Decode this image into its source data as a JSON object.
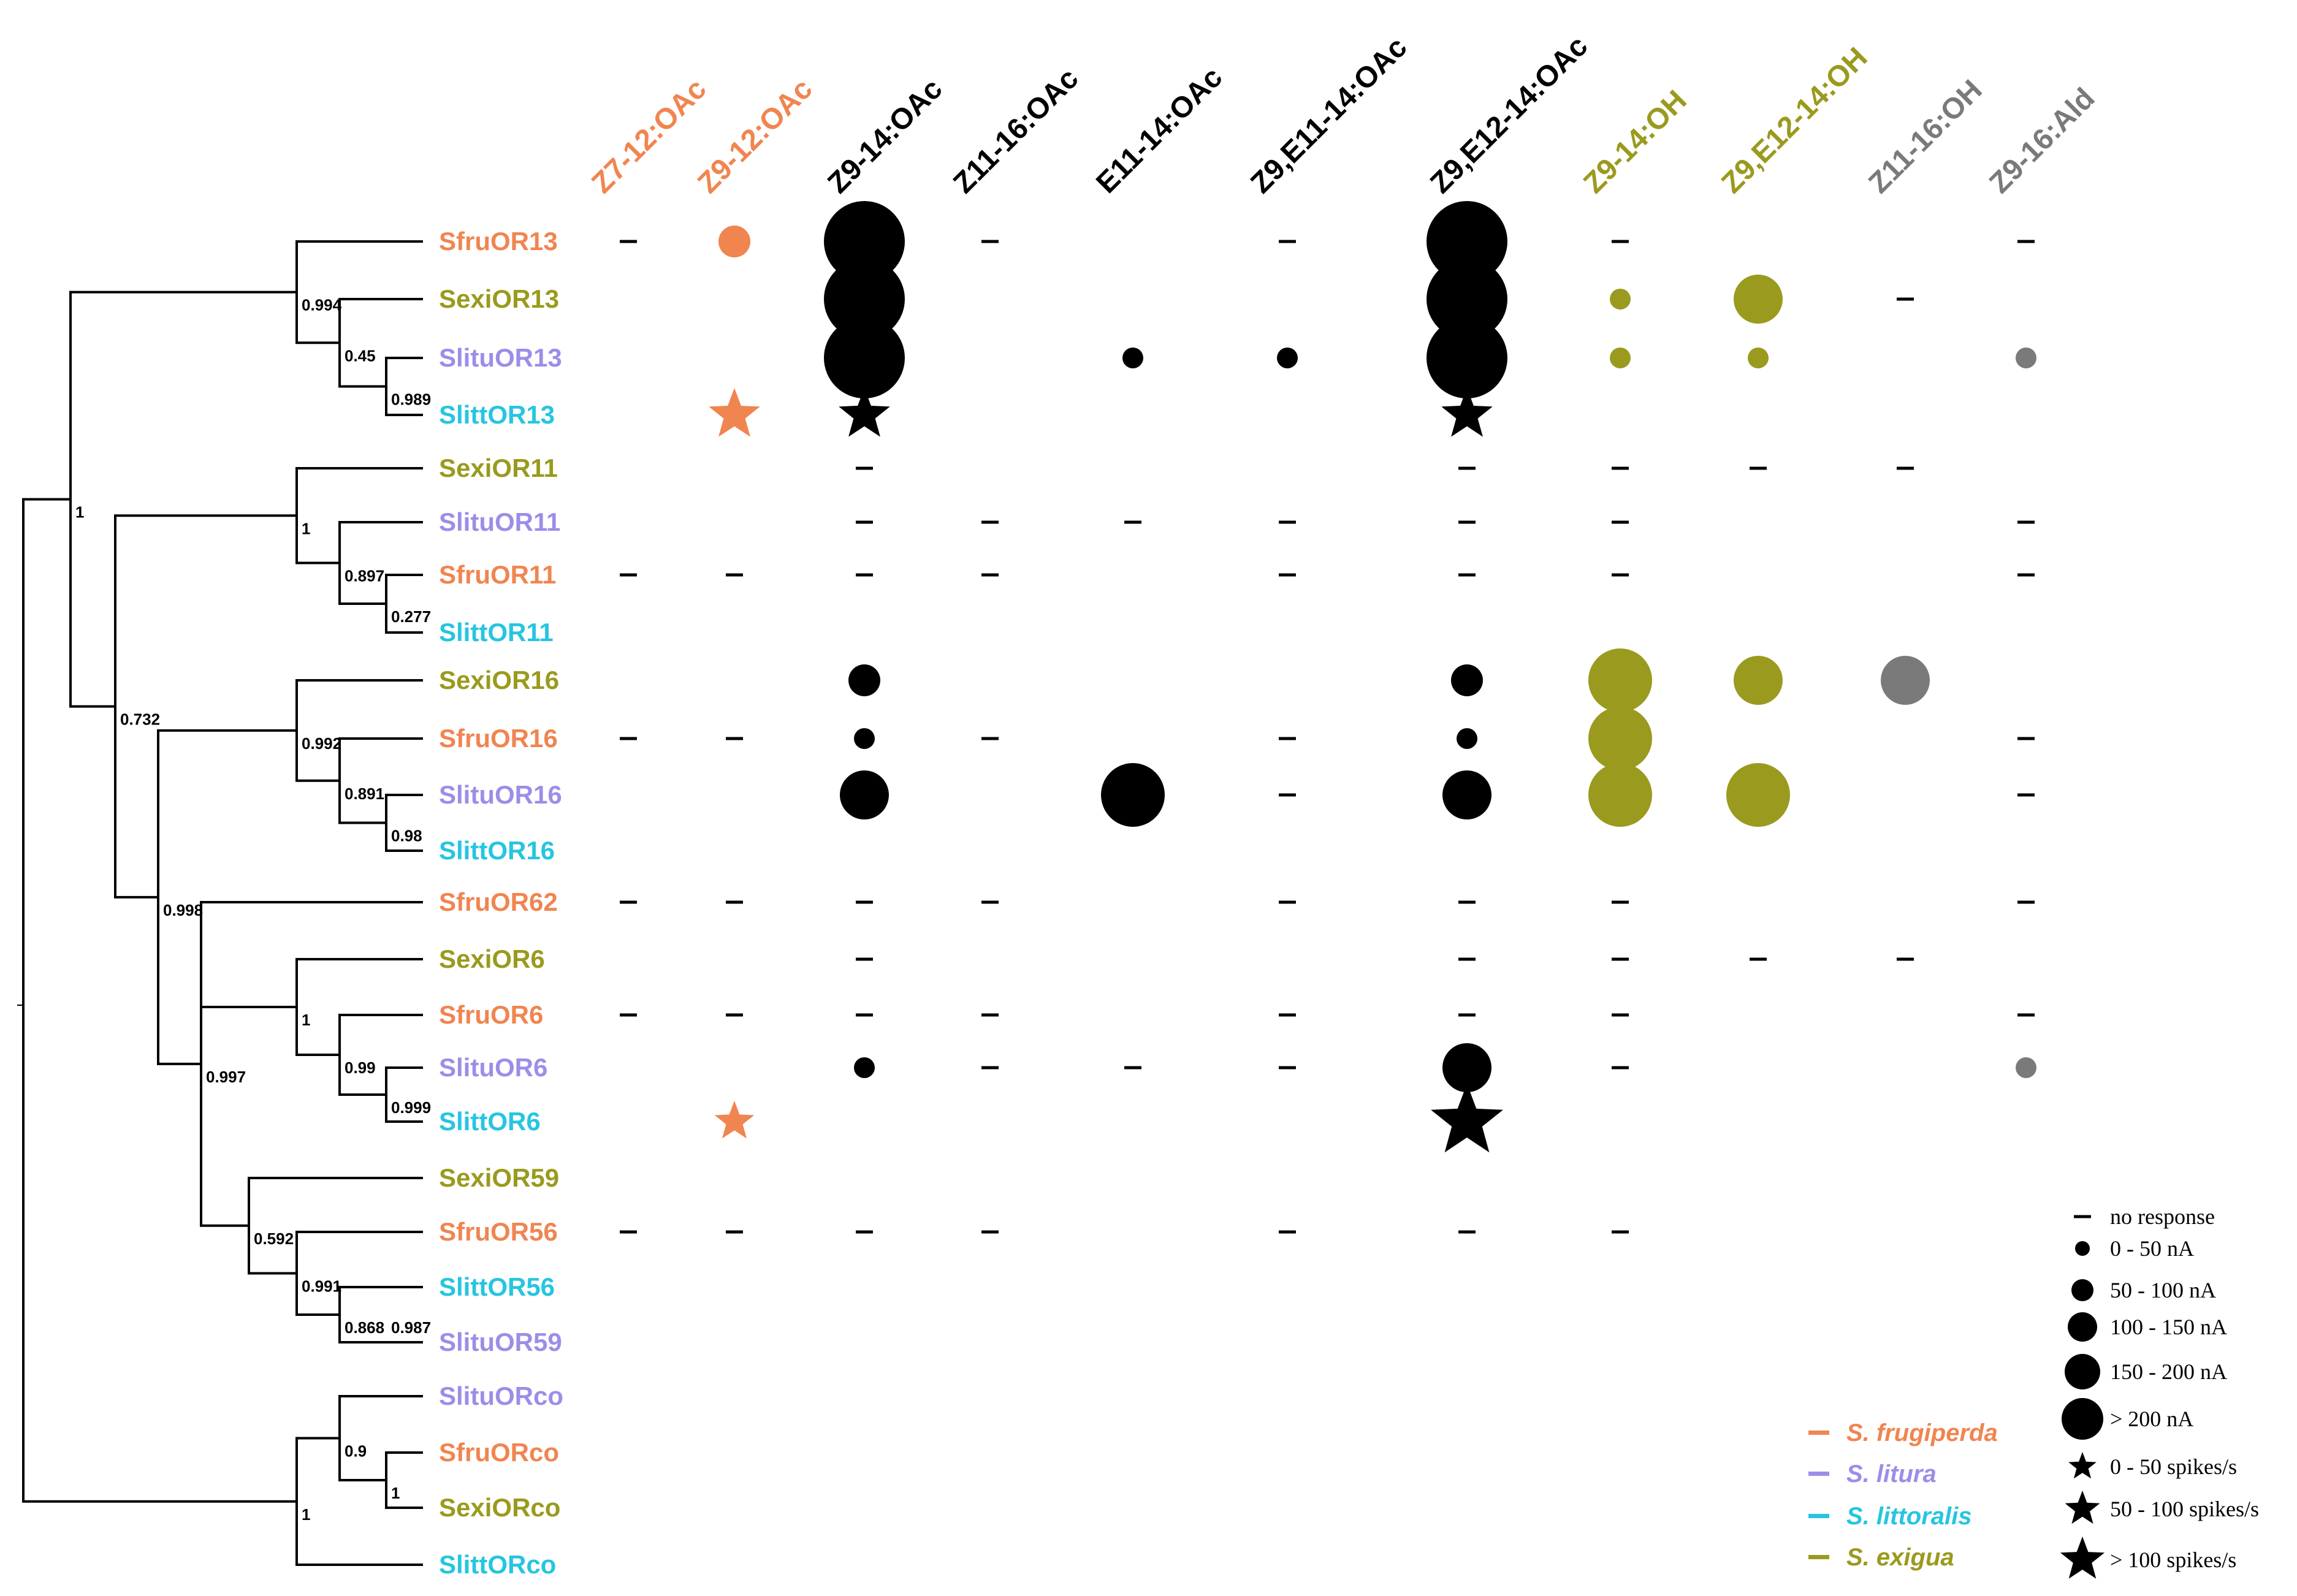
{
  "chart_data": {
    "type": "phylogenetic-tree-dot-matrix",
    "title": "",
    "compounds": [
      {
        "label": "Z7-12:OAc",
        "color_key": "frugiperda"
      },
      {
        "label": "Z9-12:OAc",
        "color_key": "frugiperda"
      },
      {
        "label": "Z9-14:OAc",
        "color_key": "black"
      },
      {
        "label": "Z11-16:OAc",
        "color_key": "black"
      },
      {
        "label": "E11-14:OAc",
        "color_key": "black"
      },
      {
        "label": "Z9,E11-14:OAc",
        "color_key": "black"
      },
      {
        "label": "Z9,E12-14:OAc",
        "color_key": "black"
      },
      {
        "label": "Z9-14:OH",
        "color_key": "exigua"
      },
      {
        "label": "Z9,E12-14:OH",
        "color_key": "exigua"
      },
      {
        "label": "Z11-16:OH",
        "color_key": "gray"
      },
      {
        "label": "Z9-16:Ald",
        "color_key": "gray"
      }
    ],
    "receptors": [
      {
        "label": "SfruOR13",
        "species": "frugiperda"
      },
      {
        "label": "SexiOR13",
        "species": "exigua"
      },
      {
        "label": "SlituOR13",
        "species": "litura"
      },
      {
        "label": "SlittOR13",
        "species": "littoralis"
      },
      {
        "label": "SexiOR11",
        "species": "exigua"
      },
      {
        "label": "SlituOR11",
        "species": "litura"
      },
      {
        "label": "SfruOR11",
        "species": "frugiperda"
      },
      {
        "label": "SlittOR11",
        "species": "littoralis"
      },
      {
        "label": "SexiOR16",
        "species": "exigua"
      },
      {
        "label": "SfruOR16",
        "species": "frugiperda"
      },
      {
        "label": "SlituOR16",
        "species": "litura"
      },
      {
        "label": "SlittOR16",
        "species": "littoralis"
      },
      {
        "label": "SfruOR62",
        "species": "frugiperda"
      },
      {
        "label": "SexiOR6",
        "species": "exigua"
      },
      {
        "label": "SfruOR6",
        "species": "frugiperda"
      },
      {
        "label": "SlituOR6",
        "species": "litura"
      },
      {
        "label": "SlittOR6",
        "species": "littoralis"
      },
      {
        "label": "SexiOR59",
        "species": "exigua"
      },
      {
        "label": "SfruOR56",
        "species": "frugiperda"
      },
      {
        "label": "SlittOR56",
        "species": "littoralis"
      },
      {
        "label": "SlituOR59",
        "species": "litura"
      },
      {
        "label": "SlituORco",
        "species": "litura"
      },
      {
        "label": "SfruORco",
        "species": "frugiperda"
      },
      {
        "label": "SexiORco",
        "species": "exigua"
      },
      {
        "label": "SlittORco",
        "species": "littoralis"
      }
    ],
    "responses": [
      {
        "receptor": 0,
        "compound": 0,
        "kind": "none"
      },
      {
        "receptor": 0,
        "compound": 1,
        "kind": "circle",
        "level": 2
      },
      {
        "receptor": 0,
        "compound": 2,
        "kind": "circle",
        "level": 5
      },
      {
        "receptor": 0,
        "compound": 3,
        "kind": "none"
      },
      {
        "receptor": 0,
        "compound": 5,
        "kind": "none"
      },
      {
        "receptor": 0,
        "compound": 6,
        "kind": "circle",
        "level": 5
      },
      {
        "receptor": 0,
        "compound": 7,
        "kind": "none"
      },
      {
        "receptor": 0,
        "compound": 10,
        "kind": "none"
      },
      {
        "receptor": 1,
        "compound": 2,
        "kind": "circle",
        "level": 5
      },
      {
        "receptor": 1,
        "compound": 6,
        "kind": "circle",
        "level": 5
      },
      {
        "receptor": 1,
        "compound": 7,
        "kind": "circle",
        "level": 1
      },
      {
        "receptor": 1,
        "compound": 8,
        "kind": "circle",
        "level": 3
      },
      {
        "receptor": 1,
        "compound": 9,
        "kind": "none"
      },
      {
        "receptor": 2,
        "compound": 2,
        "kind": "circle",
        "level": 5
      },
      {
        "receptor": 2,
        "compound": 4,
        "kind": "circle",
        "level": 1
      },
      {
        "receptor": 2,
        "compound": 5,
        "kind": "circle",
        "level": 1
      },
      {
        "receptor": 2,
        "compound": 6,
        "kind": "circle",
        "level": 5
      },
      {
        "receptor": 2,
        "compound": 7,
        "kind": "circle",
        "level": 1
      },
      {
        "receptor": 2,
        "compound": 8,
        "kind": "circle",
        "level": 1
      },
      {
        "receptor": 2,
        "compound": 10,
        "kind": "circle",
        "level": 1
      },
      {
        "receptor": 3,
        "compound": 1,
        "kind": "star",
        "level": 2
      },
      {
        "receptor": 3,
        "compound": 2,
        "kind": "star",
        "level": 2
      },
      {
        "receptor": 3,
        "compound": 6,
        "kind": "star",
        "level": 2
      },
      {
        "receptor": 4,
        "compound": 2,
        "kind": "none"
      },
      {
        "receptor": 4,
        "compound": 6,
        "kind": "none"
      },
      {
        "receptor": 4,
        "compound": 7,
        "kind": "none"
      },
      {
        "receptor": 4,
        "compound": 8,
        "kind": "none"
      },
      {
        "receptor": 4,
        "compound": 9,
        "kind": "none"
      },
      {
        "receptor": 5,
        "compound": 2,
        "kind": "none"
      },
      {
        "receptor": 5,
        "compound": 3,
        "kind": "none"
      },
      {
        "receptor": 5,
        "compound": 4,
        "kind": "none"
      },
      {
        "receptor": 5,
        "compound": 5,
        "kind": "none"
      },
      {
        "receptor": 5,
        "compound": 6,
        "kind": "none"
      },
      {
        "receptor": 5,
        "compound": 7,
        "kind": "none"
      },
      {
        "receptor": 5,
        "compound": 10,
        "kind": "none"
      },
      {
        "receptor": 6,
        "compound": 0,
        "kind": "none"
      },
      {
        "receptor": 6,
        "compound": 1,
        "kind": "none"
      },
      {
        "receptor": 6,
        "compound": 2,
        "kind": "none"
      },
      {
        "receptor": 6,
        "compound": 3,
        "kind": "none"
      },
      {
        "receptor": 6,
        "compound": 5,
        "kind": "none"
      },
      {
        "receptor": 6,
        "compound": 6,
        "kind": "none"
      },
      {
        "receptor": 6,
        "compound": 7,
        "kind": "none"
      },
      {
        "receptor": 6,
        "compound": 10,
        "kind": "none"
      },
      {
        "receptor": 8,
        "compound": 2,
        "kind": "circle",
        "level": 2
      },
      {
        "receptor": 8,
        "compound": 6,
        "kind": "circle",
        "level": 2
      },
      {
        "receptor": 8,
        "compound": 7,
        "kind": "circle",
        "level": 4
      },
      {
        "receptor": 8,
        "compound": 8,
        "kind": "circle",
        "level": 3
      },
      {
        "receptor": 8,
        "compound": 9,
        "kind": "circle",
        "level": 3
      },
      {
        "receptor": 9,
        "compound": 0,
        "kind": "none"
      },
      {
        "receptor": 9,
        "compound": 1,
        "kind": "none"
      },
      {
        "receptor": 9,
        "compound": 2,
        "kind": "circle",
        "level": 1
      },
      {
        "receptor": 9,
        "compound": 3,
        "kind": "none"
      },
      {
        "receptor": 9,
        "compound": 5,
        "kind": "none"
      },
      {
        "receptor": 9,
        "compound": 6,
        "kind": "circle",
        "level": 1
      },
      {
        "receptor": 9,
        "compound": 7,
        "kind": "circle",
        "level": 4
      },
      {
        "receptor": 9,
        "compound": 10,
        "kind": "none"
      },
      {
        "receptor": 10,
        "compound": 2,
        "kind": "circle",
        "level": 3
      },
      {
        "receptor": 10,
        "compound": 4,
        "kind": "circle",
        "level": 4
      },
      {
        "receptor": 10,
        "compound": 5,
        "kind": "none"
      },
      {
        "receptor": 10,
        "compound": 6,
        "kind": "circle",
        "level": 3
      },
      {
        "receptor": 10,
        "compound": 7,
        "kind": "circle",
        "level": 4
      },
      {
        "receptor": 10,
        "compound": 8,
        "kind": "circle",
        "level": 4
      },
      {
        "receptor": 10,
        "compound": 10,
        "kind": "none"
      },
      {
        "receptor": 12,
        "compound": 0,
        "kind": "none"
      },
      {
        "receptor": 12,
        "compound": 1,
        "kind": "none"
      },
      {
        "receptor": 12,
        "compound": 2,
        "kind": "none"
      },
      {
        "receptor": 12,
        "compound": 3,
        "kind": "none"
      },
      {
        "receptor": 12,
        "compound": 5,
        "kind": "none"
      },
      {
        "receptor": 12,
        "compound": 6,
        "kind": "none"
      },
      {
        "receptor": 12,
        "compound": 7,
        "kind": "none"
      },
      {
        "receptor": 12,
        "compound": 10,
        "kind": "none"
      },
      {
        "receptor": 13,
        "compound": 2,
        "kind": "none"
      },
      {
        "receptor": 13,
        "compound": 6,
        "kind": "none"
      },
      {
        "receptor": 13,
        "compound": 7,
        "kind": "none"
      },
      {
        "receptor": 13,
        "compound": 8,
        "kind": "none"
      },
      {
        "receptor": 13,
        "compound": 9,
        "kind": "none"
      },
      {
        "receptor": 14,
        "compound": 0,
        "kind": "none"
      },
      {
        "receptor": 14,
        "compound": 1,
        "kind": "none"
      },
      {
        "receptor": 14,
        "compound": 2,
        "kind": "none"
      },
      {
        "receptor": 14,
        "compound": 3,
        "kind": "none"
      },
      {
        "receptor": 14,
        "compound": 5,
        "kind": "none"
      },
      {
        "receptor": 14,
        "compound": 6,
        "kind": "none"
      },
      {
        "receptor": 14,
        "compound": 7,
        "kind": "none"
      },
      {
        "receptor": 14,
        "compound": 10,
        "kind": "none"
      },
      {
        "receptor": 15,
        "compound": 2,
        "kind": "circle",
        "level": 1
      },
      {
        "receptor": 15,
        "compound": 3,
        "kind": "none"
      },
      {
        "receptor": 15,
        "compound": 4,
        "kind": "none"
      },
      {
        "receptor": 15,
        "compound": 5,
        "kind": "none"
      },
      {
        "receptor": 15,
        "compound": 6,
        "kind": "circle",
        "level": 3
      },
      {
        "receptor": 15,
        "compound": 7,
        "kind": "none"
      },
      {
        "receptor": 15,
        "compound": 10,
        "kind": "circle",
        "level": 1
      },
      {
        "receptor": 16,
        "compound": 1,
        "kind": "star",
        "level": 1
      },
      {
        "receptor": 16,
        "compound": 6,
        "kind": "star",
        "level": 3
      },
      {
        "receptor": 18,
        "compound": 0,
        "kind": "none"
      },
      {
        "receptor": 18,
        "compound": 1,
        "kind": "none"
      },
      {
        "receptor": 18,
        "compound": 2,
        "kind": "none"
      },
      {
        "receptor": 18,
        "compound": 3,
        "kind": "none"
      },
      {
        "receptor": 18,
        "compound": 5,
        "kind": "none"
      },
      {
        "receptor": 18,
        "compound": 6,
        "kind": "none"
      },
      {
        "receptor": 18,
        "compound": 7,
        "kind": "none"
      }
    ],
    "tree": {
      "bootstrap_labels": [
        "0.994",
        "0.45",
        "0.989",
        "1",
        "1",
        "0.897",
        "0.277",
        "0.732",
        "0.992",
        "0.891",
        "0.98",
        "0.998",
        "0.997",
        "1",
        "0.99",
        "0.999",
        "0.592",
        "0.991",
        "0.868",
        "0.987",
        "1",
        "0.9",
        "1"
      ]
    },
    "legend": {
      "response_items": [
        {
          "label": "no response",
          "kind": "none"
        },
        {
          "label": "0 - 50 nA",
          "kind": "circle",
          "level": 1
        },
        {
          "label": "50 - 100 nA",
          "kind": "circle",
          "level": 2
        },
        {
          "label": "100 - 150 nA",
          "kind": "circle",
          "level": 3
        },
        {
          "label": "150 - 200 nA",
          "kind": "circle",
          "level": 4
        },
        {
          "label": "> 200 nA",
          "kind": "circle",
          "level": 5
        },
        {
          "label": "0 - 50 spikes/s",
          "kind": "star",
          "level": 1
        },
        {
          "label": "50 - 100 spikes/s",
          "kind": "star",
          "level": 2
        },
        {
          "label": "> 100 spikes/s",
          "kind": "star",
          "level": 3
        }
      ],
      "species_items": [
        {
          "label": "S. frugiperda",
          "species": "frugiperda"
        },
        {
          "label": "S. litura",
          "species": "litura"
        },
        {
          "label": "S. littoralis",
          "species": "littoralis"
        },
        {
          "label": "S. exigua",
          "species": "exigua"
        }
      ]
    },
    "colors": {
      "frugiperda": "#f08550",
      "litura": "#9b8ee8",
      "littoralis": "#26c5e0",
      "exigua": "#9a9a1e",
      "black": "#000000",
      "gray": "#7a7a7a"
    }
  }
}
